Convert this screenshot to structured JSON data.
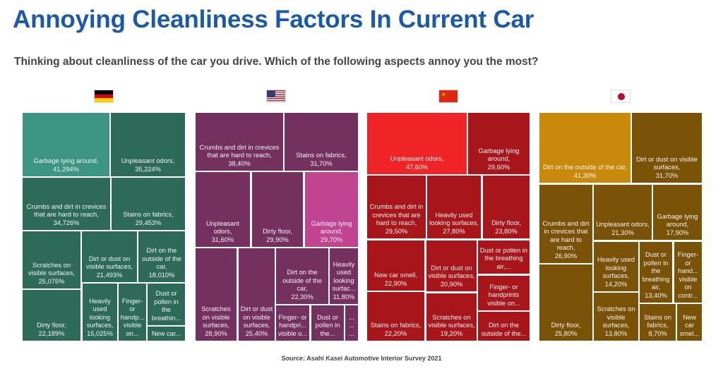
{
  "title": "Annoying Cleanliness Factors In Current Car",
  "subtitle": "Thinking about cleanliness of the car you drive. Which of the following aspects annoy you the most?",
  "source": "Source: Asahi Kasei Automotive Interior Survey 2021",
  "chart_data": [
    {
      "type": "treemap",
      "flag_icon": "germany-flag",
      "colors": {
        "base": "#2d6a59",
        "highlight": "#3b9582"
      },
      "tiles": [
        {
          "label": "Garbage lying around,",
          "value": "41,294%",
          "highlight": true
        },
        {
          "label": "Unpleasant odors,",
          "value": "35,224%"
        },
        {
          "label": "Crumbs and dirt in crevices that are hard to reach,",
          "value": "34,726%"
        },
        {
          "label": "Stains on fabrics,",
          "value": "29,453%"
        },
        {
          "label": "Scratches on visible surfaces,",
          "value": "25,075%"
        },
        {
          "label": "Dirt or dust on visible surfaces,",
          "value": "21,493%"
        },
        {
          "label": "Dirt on the outside of the car,",
          "value": "18,010%"
        },
        {
          "label": "Dirty floor,",
          "value": "22,189%"
        },
        {
          "label": "Heavily used looking surfaces,",
          "value": "15,025%"
        },
        {
          "label": "Finger- or handp... visible on...",
          "value": ""
        },
        {
          "label": "Dust or pollen in the breathin...",
          "value": ""
        },
        {
          "label": "New car...",
          "value": ""
        }
      ]
    },
    {
      "type": "treemap",
      "flag_icon": "usa-flag",
      "colors": {
        "base": "#74305f",
        "highlight": "#c0448f"
      },
      "tiles": [
        {
          "label": "Crumbs and dirt in crevices that are hard to reach,",
          "value": "38,40%"
        },
        {
          "label": "Stains on fabrics,",
          "value": "31,70%"
        },
        {
          "label": "Unpleasant odors,",
          "value": "31,60%"
        },
        {
          "label": "Dirty floor,",
          "value": "29,90%"
        },
        {
          "label": "Garbage lying around,",
          "value": "29,70%",
          "highlight": true
        },
        {
          "label": "Scratches on visible surfaces,",
          "value": "28,90%"
        },
        {
          "label": "Dirt or dust on visible surfaces,",
          "value": "25,40%"
        },
        {
          "label": "Dirt on the outside of the car,",
          "value": "22,30%"
        },
        {
          "label": "Heavily used looking surfac...",
          "value": "11,80%"
        },
        {
          "label": "Finger- or handpri... visible o...",
          "value": ""
        },
        {
          "label": "Dust or pollen in the...",
          "value": ""
        },
        {
          "label": "... ... ...",
          "value": ""
        }
      ]
    },
    {
      "type": "treemap",
      "flag_icon": "china-flag",
      "colors": {
        "base": "#a8151a",
        "highlight": "#f02427"
      },
      "tiles": [
        {
          "label": "Unpleasant odors,",
          "value": "47,60%",
          "highlight": true
        },
        {
          "label": "Garbage lying around,",
          "value": "29,60%"
        },
        {
          "label": "Crumbs and dirt in crevices that are hard to reach,",
          "value": "29,50%"
        },
        {
          "label": "Heavily used looking surfaces,",
          "value": "27,80%"
        },
        {
          "label": "Dirty floor,",
          "value": "23,80%"
        },
        {
          "label": "New car smell,",
          "value": "22,90%"
        },
        {
          "label": "Dirt or dust on visible surfaces,",
          "value": "20,90%"
        },
        {
          "label": "Dust or pollen in the breathing air,...",
          "value": ""
        },
        {
          "label": "Finger- or handprints visible on...",
          "value": ""
        },
        {
          "label": "Stains on fabrics,",
          "value": "22,20%"
        },
        {
          "label": "Scratches on visible surfaces,",
          "value": "19,20%"
        },
        {
          "label": "Dirt on the outside of the...",
          "value": ""
        }
      ]
    },
    {
      "type": "treemap",
      "flag_icon": "japan-flag",
      "colors": {
        "base": "#7a5207",
        "highlight": "#c98a0b"
      },
      "tiles": [
        {
          "label": "Dirt on the outside of the car,",
          "value": "41,30%",
          "highlight": true
        },
        {
          "label": "Dirt or dust on visible surfaces,",
          "value": "31,70%"
        },
        {
          "label": "Crumbs and dirt in crevices that are hard to reach,",
          "value": "26,90%"
        },
        {
          "label": "Unpleasant odors,",
          "value": "21,30%"
        },
        {
          "label": "Garbage lying around,",
          "value": "17,90%"
        },
        {
          "label": "Dirty floor,",
          "value": "25,80%"
        },
        {
          "label": "Heavily used looking surfaces,",
          "value": "14,20%"
        },
        {
          "label": "Dust or pollen in the breathing air,",
          "value": "13,40%"
        },
        {
          "label": "Finger- or hand... visible on contr...",
          "value": ""
        },
        {
          "label": "Scratches on visible surfaces,",
          "value": "13,80%"
        },
        {
          "label": "Stains on fabrics,",
          "value": "8,70%"
        },
        {
          "label": "New car smel...",
          "value": ""
        }
      ]
    }
  ]
}
